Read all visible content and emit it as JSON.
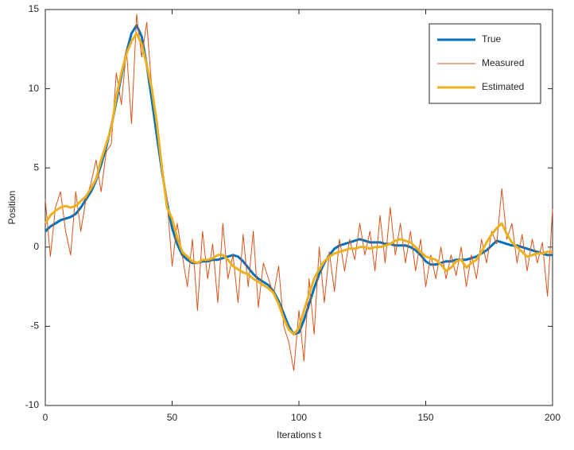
{
  "chart_data": {
    "type": "line",
    "xlabel": "Iterations t",
    "ylabel": "Position",
    "xlim": [
      0,
      200
    ],
    "xticks": [
      0,
      50,
      100,
      150,
      200
    ],
    "ylim": [
      -10,
      15
    ],
    "yticks": [
      -10,
      -5,
      0,
      5,
      10,
      15
    ],
    "legend": "top right",
    "x": [
      0,
      2,
      4,
      6,
      8,
      10,
      12,
      14,
      16,
      18,
      20,
      22,
      24,
      26,
      28,
      30,
      32,
      34,
      36,
      38,
      40,
      42,
      44,
      46,
      48,
      50,
      52,
      54,
      56,
      58,
      60,
      62,
      64,
      66,
      68,
      70,
      72,
      74,
      76,
      78,
      80,
      82,
      84,
      86,
      88,
      90,
      92,
      94,
      96,
      98,
      100,
      102,
      104,
      106,
      108,
      110,
      112,
      114,
      116,
      118,
      120,
      122,
      124,
      126,
      128,
      130,
      132,
      134,
      136,
      138,
      140,
      142,
      144,
      146,
      148,
      150,
      152,
      154,
      156,
      158,
      160,
      162,
      164,
      166,
      168,
      170,
      172,
      174,
      176,
      178,
      180,
      182,
      184,
      186,
      188,
      190,
      192,
      194,
      196,
      198,
      200
    ],
    "series": [
      {
        "name": "True",
        "color": "#0072bd",
        "width": 3,
        "values": [
          1.0,
          1.3,
          1.5,
          1.7,
          1.8,
          1.9,
          2.1,
          2.5,
          3.0,
          3.5,
          4.2,
          5.2,
          6.3,
          7.6,
          9.2,
          10.8,
          12.3,
          13.5,
          14.0,
          13.3,
          11.5,
          9.3,
          7.0,
          4.8,
          2.8,
          1.2,
          0.2,
          -0.5,
          -0.8,
          -1.0,
          -1.0,
          -0.9,
          -0.9,
          -0.8,
          -0.8,
          -0.7,
          -0.6,
          -0.5,
          -0.6,
          -0.9,
          -1.3,
          -1.7,
          -2.0,
          -2.2,
          -2.4,
          -2.8,
          -3.4,
          -4.2,
          -5.0,
          -5.5,
          -5.4,
          -4.6,
          -3.6,
          -2.6,
          -1.7,
          -1.0,
          -0.5,
          -0.1,
          0.1,
          0.2,
          0.3,
          0.4,
          0.5,
          0.4,
          0.3,
          0.3,
          0.3,
          0.2,
          0.2,
          0.1,
          0.1,
          0.1,
          0.0,
          -0.2,
          -0.5,
          -0.9,
          -1.1,
          -1.1,
          -1.0,
          -0.9,
          -0.9,
          -0.8,
          -0.8,
          -0.8,
          -0.7,
          -0.6,
          -0.4,
          -0.2,
          0.1,
          0.4,
          0.3,
          0.2,
          0.1,
          0.1,
          0.0,
          -0.1,
          -0.2,
          -0.3,
          -0.4,
          -0.5,
          -0.5
        ]
      },
      {
        "name": "Measured",
        "color": "#d95319",
        "width": 1,
        "values": [
          3.0,
          -0.6,
          2.5,
          3.5,
          1.0,
          -0.5,
          3.5,
          1.0,
          3.0,
          4.0,
          5.5,
          3.5,
          6.0,
          6.5,
          11.0,
          9.0,
          12.5,
          7.8,
          14.7,
          12.0,
          14.2,
          10.0,
          8.0,
          5.0,
          3.0,
          -1.2,
          1.5,
          -0.5,
          -2.5,
          0.5,
          -4.0,
          1.0,
          -2.0,
          0.2,
          -3.5,
          1.5,
          -2.0,
          -0.5,
          -3.5,
          0.8,
          -2.5,
          1.0,
          -3.8,
          -1.0,
          -2.0,
          -3.0,
          -1.2,
          -5.0,
          -6.0,
          -7.8,
          -4.0,
          -7.2,
          -2.0,
          -5.5,
          0.0,
          -3.5,
          -0.3,
          -2.8,
          0.5,
          -1.5,
          0.5,
          -0.8,
          1.5,
          -0.5,
          1.0,
          -1.5,
          2.0,
          -1.0,
          2.5,
          -0.5,
          1.5,
          -1.0,
          1.0,
          -1.5,
          0.5,
          -2.5,
          -0.5,
          -2.0,
          0.0,
          -2.0,
          -0.5,
          -1.8,
          0.0,
          -2.5,
          -0.5,
          -2.0,
          0.5,
          -1.0,
          1.0,
          0.2,
          3.7,
          0.5,
          1.5,
          -1.0,
          0.8,
          -1.5,
          0.5,
          -1.0,
          0.3,
          -3.1,
          2.4
        ]
      },
      {
        "name": "Estimated",
        "color": "#edb120",
        "width": 3,
        "values": [
          1.5,
          2.0,
          2.3,
          2.5,
          2.6,
          2.5,
          2.6,
          2.9,
          3.2,
          3.7,
          4.3,
          5.5,
          6.5,
          7.5,
          9.5,
          11.0,
          12.2,
          13.0,
          13.5,
          12.8,
          11.5,
          10.0,
          7.8,
          5.0,
          2.5,
          1.8,
          0.6,
          -0.3,
          -0.6,
          -0.9,
          -1.0,
          -0.8,
          -0.8,
          -0.7,
          -0.5,
          -0.5,
          -0.8,
          -1.2,
          -1.4,
          -1.6,
          -1.7,
          -2.0,
          -2.2,
          -2.4,
          -2.6,
          -2.9,
          -3.6,
          -4.5,
          -5.2,
          -5.5,
          -5.1,
          -4.0,
          -3.0,
          -2.0,
          -1.4,
          -0.9,
          -0.6,
          -0.4,
          -0.3,
          -0.2,
          -0.1,
          -0.1,
          0.0,
          0.0,
          -0.1,
          0.0,
          0.0,
          0.1,
          0.2,
          0.4,
          0.5,
          0.4,
          0.3,
          0.0,
          -0.3,
          -0.6,
          -0.7,
          -0.8,
          -1.1,
          -1.5,
          -1.3,
          -0.9,
          -0.8,
          -1.3,
          -1.0,
          -0.8,
          -0.3,
          0.3,
          0.8,
          1.2,
          1.5,
          0.8,
          0.3,
          0.0,
          -0.3,
          -0.6,
          -0.5,
          -0.4,
          -0.4,
          -0.3,
          -0.3
        ]
      }
    ]
  }
}
